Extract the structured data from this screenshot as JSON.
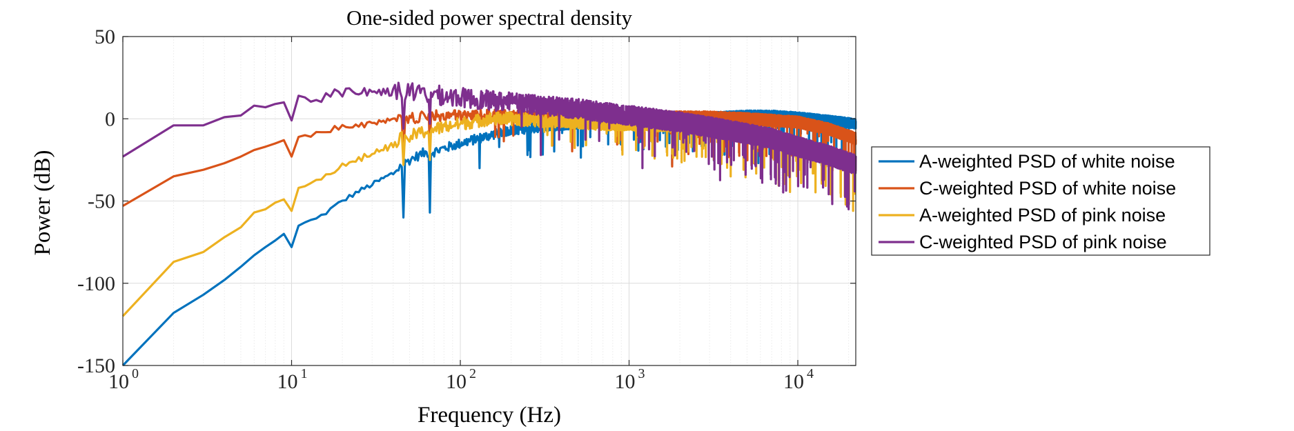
{
  "chart_data": {
    "type": "line",
    "title": "One-sided power spectral density",
    "xlabel": "Frequency (Hz)",
    "ylabel": "Power (dB)",
    "xscale": "log",
    "xlim": [
      1,
      22050
    ],
    "ylim": [
      -150,
      50
    ],
    "x_ticks": [
      {
        "value": 1,
        "base": "10",
        "exp": "0"
      },
      {
        "value": 10,
        "base": "10",
        "exp": "1"
      },
      {
        "value": 100,
        "base": "10",
        "exp": "2"
      },
      {
        "value": 1000,
        "base": "10",
        "exp": "3"
      },
      {
        "value": 10000,
        "base": "10",
        "exp": "4"
      }
    ],
    "y_ticks": [
      {
        "value": 50,
        "label": "50"
      },
      {
        "value": 0,
        "label": "0"
      },
      {
        "value": -50,
        "label": "-50"
      },
      {
        "value": -100,
        "label": "-100"
      },
      {
        "value": -150,
        "label": "-150"
      }
    ],
    "grid": true,
    "legend_position": "outside-right",
    "series": [
      {
        "name": "A-weighted PSD of white noise",
        "color": "#0072BD",
        "points": [
          [
            1,
            -150
          ],
          [
            2,
            -118
          ],
          [
            3,
            -107
          ],
          [
            4,
            -98
          ],
          [
            5,
            -90
          ],
          [
            6,
            -83
          ],
          [
            7,
            -78
          ],
          [
            8,
            -74
          ],
          [
            9,
            -70
          ],
          [
            10,
            -78
          ],
          [
            11,
            -65
          ],
          [
            12,
            -63
          ],
          [
            14,
            -61
          ],
          [
            16,
            -57
          ],
          [
            20,
            -50
          ],
          [
            25,
            -44
          ],
          [
            30,
            -40
          ],
          [
            40,
            -33
          ],
          [
            45,
            -28
          ],
          [
            50,
            -25
          ],
          [
            60,
            -21
          ],
          [
            70,
            -20
          ],
          [
            80,
            -18
          ],
          [
            100,
            -15
          ],
          [
            150,
            -10
          ],
          [
            200,
            -7
          ],
          [
            300,
            -5
          ],
          [
            500,
            -3
          ],
          [
            700,
            -2
          ],
          [
            1000,
            -1
          ],
          [
            2000,
            0
          ],
          [
            3000,
            1
          ],
          [
            5000,
            2
          ],
          [
            7000,
            2
          ],
          [
            10000,
            1
          ],
          [
            15000,
            -1
          ],
          [
            22050,
            -3
          ]
        ],
        "noise_amp": 3,
        "dips": [
          [
            46,
            -60
          ],
          [
            66,
            -57
          ],
          [
            130,
            -30
          ],
          [
            250,
            -22
          ],
          [
            1800,
            -28
          ]
        ]
      },
      {
        "name": "C-weighted PSD of white noise",
        "color": "#D95319",
        "points": [
          [
            1,
            -53
          ],
          [
            2,
            -35
          ],
          [
            3,
            -31
          ],
          [
            4,
            -27
          ],
          [
            5,
            -23
          ],
          [
            6,
            -19
          ],
          [
            7,
            -17
          ],
          [
            8,
            -15
          ],
          [
            9,
            -13
          ],
          [
            10,
            -23
          ],
          [
            11,
            -11
          ],
          [
            12,
            -10
          ],
          [
            14,
            -9
          ],
          [
            16,
            -7
          ],
          [
            20,
            -5
          ],
          [
            25,
            -4
          ],
          [
            30,
            -3
          ],
          [
            40,
            -1
          ],
          [
            50,
            0
          ],
          [
            60,
            1
          ],
          [
            80,
            2
          ],
          [
            100,
            2
          ],
          [
            200,
            2
          ],
          [
            500,
            1
          ],
          [
            1000,
            1
          ],
          [
            2000,
            1
          ],
          [
            3000,
            1
          ],
          [
            5000,
            0
          ],
          [
            7000,
            -1
          ],
          [
            10000,
            -2
          ],
          [
            15000,
            -6
          ],
          [
            22050,
            -12
          ]
        ],
        "noise_amp": 3.5,
        "dips": [
          [
            46,
            -25
          ],
          [
            66,
            -20
          ],
          [
            1800,
            -29
          ],
          [
            21000,
            -58
          ]
        ]
      },
      {
        "name": "A-weighted PSD of pink noise",
        "color": "#EDB120",
        "points": [
          [
            1,
            -120
          ],
          [
            2,
            -87
          ],
          [
            3,
            -81
          ],
          [
            4,
            -72
          ],
          [
            5,
            -66
          ],
          [
            6,
            -57
          ],
          [
            7,
            -55
          ],
          [
            8,
            -51
          ],
          [
            9,
            -49
          ],
          [
            10,
            -56
          ],
          [
            11,
            -42
          ],
          [
            12,
            -41
          ],
          [
            14,
            -38
          ],
          [
            16,
            -34
          ],
          [
            20,
            -29
          ],
          [
            25,
            -25
          ],
          [
            30,
            -21
          ],
          [
            40,
            -16
          ],
          [
            45,
            -12
          ],
          [
            50,
            -11
          ],
          [
            60,
            -8
          ],
          [
            80,
            -5
          ],
          [
            100,
            -3
          ],
          [
            150,
            0
          ],
          [
            200,
            0
          ],
          [
            300,
            -1
          ],
          [
            500,
            -2
          ],
          [
            700,
            -3
          ],
          [
            1000,
            -3
          ],
          [
            2000,
            -4
          ],
          [
            3000,
            -6
          ],
          [
            5000,
            -9
          ],
          [
            7000,
            -12
          ],
          [
            10000,
            -16
          ],
          [
            15000,
            -21
          ],
          [
            22050,
            -28
          ]
        ],
        "noise_amp": 4,
        "dips": [
          [
            46,
            -28
          ],
          [
            66,
            -25
          ]
        ]
      },
      {
        "name": "C-weighted PSD of pink noise",
        "color": "#7E2F8E",
        "points": [
          [
            1,
            -23
          ],
          [
            2,
            -4
          ],
          [
            3,
            -4
          ],
          [
            4,
            1
          ],
          [
            5,
            2
          ],
          [
            6,
            8
          ],
          [
            7,
            7
          ],
          [
            8,
            9
          ],
          [
            9,
            10
          ],
          [
            10,
            -1
          ],
          [
            11,
            14
          ],
          [
            12,
            13
          ],
          [
            14,
            11
          ],
          [
            16,
            15
          ],
          [
            20,
            16
          ],
          [
            25,
            17
          ],
          [
            30,
            16
          ],
          [
            40,
            17
          ],
          [
            50,
            16
          ],
          [
            60,
            15
          ],
          [
            80,
            14
          ],
          [
            100,
            13
          ],
          [
            150,
            11
          ],
          [
            200,
            10
          ],
          [
            300,
            8
          ],
          [
            500,
            6
          ],
          [
            700,
            4
          ],
          [
            1000,
            2
          ],
          [
            2000,
            -2
          ],
          [
            3000,
            -5
          ],
          [
            5000,
            -9
          ],
          [
            7000,
            -12
          ],
          [
            10000,
            -17
          ],
          [
            15000,
            -22
          ],
          [
            22050,
            -28
          ]
        ],
        "noise_amp": 6,
        "dips": [
          [
            46,
            -6
          ],
          [
            66,
            -3
          ],
          [
            300,
            -22
          ],
          [
            1200,
            -30
          ],
          [
            5000,
            -42
          ],
          [
            10000,
            -48
          ],
          [
            14000,
            -62
          ],
          [
            20000,
            -55
          ]
        ]
      }
    ]
  }
}
